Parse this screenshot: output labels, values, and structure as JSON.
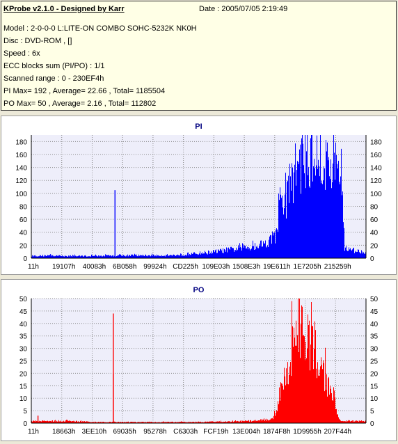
{
  "info": {
    "app_title": "KProbe v2.1.0 - Designed by Karr",
    "date": "Date : 2005/07/05 2:19:49",
    "lines": [
      "Model : 2-0-0-0 L:LITE-ON COMBO SOHC-5232K NK0H",
      "Disc : DVD-ROM ,  []",
      "Speed : 6x",
      "ECC blocks sum (PI/PO) : 1/1",
      "Scanned range : 0 - 230EF4h",
      "PI Max= 192 , Average= 22.66 , Total= 1185504",
      "PO Max= 50 , Average= 2.16 , Total= 112802"
    ]
  },
  "chart_data": [
    {
      "type": "bar",
      "title": "PI",
      "color": "#0000ff",
      "ylim": [
        0,
        190
      ],
      "yticks": [
        0,
        20,
        40,
        60,
        80,
        100,
        120,
        140,
        160,
        180
      ],
      "xticks": [
        "11h",
        "19107h",
        "40083h",
        "6B058h",
        "99924h",
        "CD225h",
        "109E03h",
        "1508E3h",
        "19E611h",
        "1E7205h",
        "215259h"
      ],
      "grid": true,
      "profile_x": [
        0,
        0.05,
        0.1,
        0.2,
        0.3,
        0.4,
        0.45,
        0.5,
        0.55,
        0.6,
        0.65,
        0.7,
        0.73,
        0.74,
        0.76,
        0.78,
        0.8,
        0.82,
        0.84,
        0.86,
        0.88,
        0.9,
        0.92,
        0.93,
        0.935,
        0.95,
        0.97,
        1.0
      ],
      "profile_y": [
        4,
        5,
        4,
        4,
        5,
        5,
        6,
        9,
        12,
        16,
        20,
        28,
        40,
        85,
        105,
        150,
        175,
        185,
        185,
        178,
        170,
        165,
        150,
        120,
        20,
        15,
        13,
        12
      ],
      "spikes": [
        {
          "x": 0.25,
          "y": 105
        }
      ]
    },
    {
      "type": "bar",
      "title": "PO",
      "color": "#ff0000",
      "ylim": [
        0,
        50
      ],
      "yticks": [
        0,
        5,
        10,
        15,
        20,
        25,
        30,
        35,
        40,
        45,
        50
      ],
      "xticks": [
        "11h",
        "18663h",
        "3EE10h",
        "69035h",
        "95278h",
        "C6303h",
        "FCF19h",
        "13E004h",
        "1874F8h",
        "1D9955h",
        "207F44h"
      ],
      "grid": true,
      "profile_x": [
        0,
        0.05,
        0.1,
        0.2,
        0.3,
        0.4,
        0.5,
        0.6,
        0.65,
        0.7,
        0.72,
        0.73,
        0.75,
        0.77,
        0.78,
        0.8,
        0.82,
        0.84,
        0.86,
        0.88,
        0.9,
        0.91,
        0.92,
        0.95,
        1.0
      ],
      "profile_y": [
        1,
        1,
        1,
        0.5,
        0.5,
        0.5,
        0.5,
        0.8,
        1,
        1.5,
        2,
        5,
        15,
        25,
        38,
        45,
        42,
        35,
        30,
        20,
        15,
        8,
        1,
        1,
        1
      ],
      "spikes": [
        {
          "x": 0.02,
          "y": 3
        },
        {
          "x": 0.245,
          "y": 44
        },
        {
          "x": 0.245,
          "y": 20
        }
      ]
    }
  ]
}
